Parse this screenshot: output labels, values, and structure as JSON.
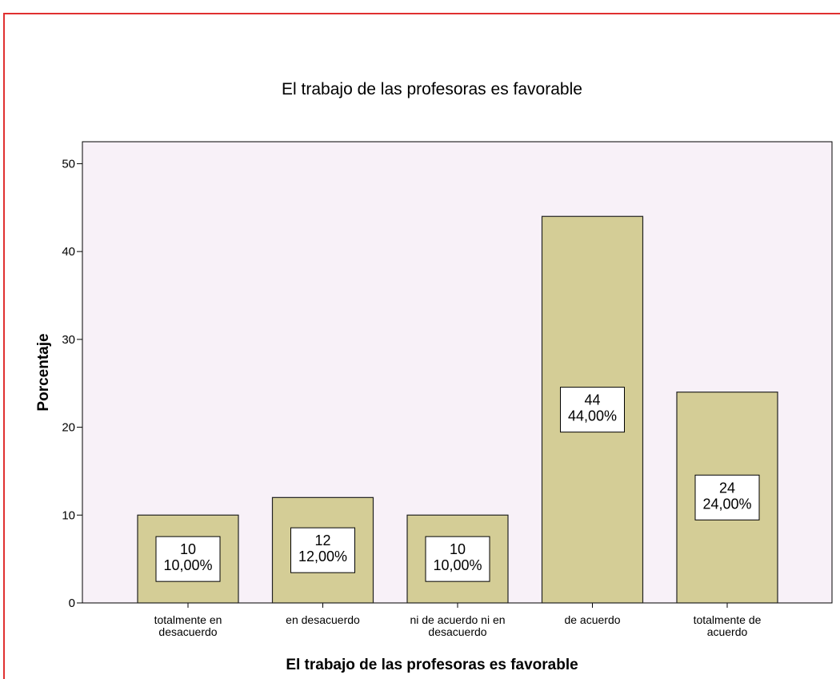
{
  "chart_data": {
    "type": "bar",
    "title": "El trabajo de las profesoras es favorable",
    "x_label": "El trabajo de las profesoras es favorable",
    "y_label": "Porcentaje",
    "categories": [
      "totalmente en\ndesacuerdo",
      "en desacuerdo",
      "ni de acuerdo ni en\ndesacuerdo",
      "de acuerdo",
      "totalmente de\nacuerdo"
    ],
    "values": [
      10,
      12,
      10,
      44,
      24
    ],
    "value_labels": [
      "10\n10,00%",
      "12\n12,00%",
      "10\n10,00%",
      "44\n44,00%",
      "24\n24,00%"
    ],
    "color": "#d4cd96",
    "ylim": [
      0,
      52.5
    ],
    "yticks": [
      0,
      10,
      20,
      30,
      40,
      50
    ],
    "grid": false
  }
}
